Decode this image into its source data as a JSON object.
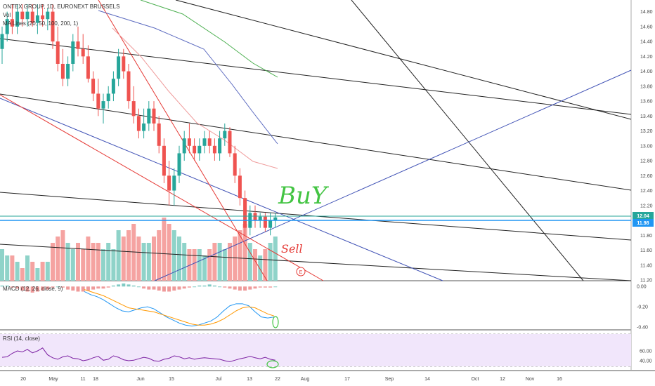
{
  "header": {
    "symbol_line": "ONTEX GROUP, 1D, EURONEXT BRUSSELS",
    "volume_label": "Vol",
    "ma_label": "MA Lines (20, 50, 100, 200, 1)",
    "macd_label": "MACD (12, 26, close, 9)",
    "rsi_label": "RSI (14, close)"
  },
  "annotations": {
    "buy_text": "BuY",
    "sell_text": "Sell",
    "event_marker": "E"
  },
  "price_tags": [
    {
      "value": "12.04",
      "color": "#26a69a"
    },
    {
      "value": "11.98",
      "color": "#2196f3"
    }
  ],
  "colors": {
    "up": "#26a69a",
    "down": "#ef5350",
    "rsi_band": "#f1e6fb",
    "accent": "#2196f3"
  },
  "chart_data": [
    {
      "type": "candlestick",
      "title": "ONTEX GROUP, 1D, EURONEXT BRUSSELS",
      "ylim": [
        11.2,
        14.9
      ],
      "yticks": [
        "14.80",
        "14.60",
        "14.40",
        "14.20",
        "14.00",
        "13.80",
        "13.60",
        "13.40",
        "13.20",
        "13.00",
        "12.80",
        "12.60",
        "12.40",
        "12.20",
        "12.00",
        "11.80",
        "11.60",
        "11.40",
        "11.20"
      ],
      "xticks": [
        "20",
        "May",
        "11",
        "18",
        "Jun",
        "15",
        "Jul",
        "13",
        "22",
        "Aug",
        "17",
        "Sep",
        "14",
        "Oct",
        "12",
        "Nov",
        "16"
      ],
      "horizontal_lines": [
        12.04,
        11.98
      ],
      "candles": [
        [
          14.3,
          14.6,
          14.1,
          14.5
        ],
        [
          14.5,
          14.8,
          14.4,
          14.7
        ],
        [
          14.7,
          14.9,
          14.5,
          14.6
        ],
        [
          14.6,
          14.9,
          14.5,
          14.8
        ],
        [
          14.8,
          14.9,
          14.6,
          14.7
        ],
        [
          14.7,
          14.9,
          14.6,
          14.8
        ],
        [
          14.8,
          14.9,
          14.6,
          14.65
        ],
        [
          14.65,
          14.9,
          14.5,
          14.75
        ],
        [
          14.75,
          14.9,
          14.6,
          14.7
        ],
        [
          14.7,
          14.85,
          14.55,
          14.8
        ],
        [
          14.8,
          14.9,
          14.3,
          14.4
        ],
        [
          14.4,
          14.6,
          14.0,
          14.1
        ],
        [
          14.1,
          14.3,
          13.8,
          13.9
        ],
        [
          13.9,
          14.2,
          13.8,
          14.1
        ],
        [
          14.1,
          14.5,
          14.0,
          14.4
        ],
        [
          14.4,
          14.6,
          14.2,
          14.3
        ],
        [
          14.3,
          14.5,
          14.1,
          14.2
        ],
        [
          14.2,
          14.35,
          13.85,
          13.9
        ],
        [
          13.9,
          14.0,
          13.6,
          13.7
        ],
        [
          13.7,
          13.9,
          13.4,
          13.5
        ],
        [
          13.5,
          13.7,
          13.3,
          13.6
        ],
        [
          13.6,
          13.8,
          13.5,
          13.7
        ],
        [
          13.7,
          14.0,
          13.6,
          13.9
        ],
        [
          13.9,
          14.3,
          13.8,
          14.2
        ],
        [
          14.2,
          14.3,
          13.9,
          14.0
        ],
        [
          14.0,
          14.1,
          13.5,
          13.6
        ],
        [
          13.6,
          13.8,
          13.3,
          13.4
        ],
        [
          13.4,
          13.5,
          13.1,
          13.2
        ],
        [
          13.2,
          13.5,
          13.1,
          13.3
        ],
        [
          13.3,
          13.6,
          13.2,
          13.5
        ],
        [
          13.5,
          13.6,
          13.2,
          13.3
        ],
        [
          13.3,
          13.4,
          12.9,
          13.0
        ],
        [
          13.0,
          13.1,
          12.5,
          12.6
        ],
        [
          12.6,
          12.8,
          12.2,
          12.4
        ],
        [
          12.4,
          12.7,
          12.2,
          12.6
        ],
        [
          12.6,
          13.0,
          12.5,
          12.9
        ],
        [
          12.9,
          13.2,
          12.8,
          13.1
        ],
        [
          13.1,
          13.3,
          12.9,
          13.0
        ],
        [
          13.0,
          13.1,
          12.8,
          12.9
        ],
        [
          12.9,
          13.1,
          12.8,
          13.0
        ],
        [
          13.0,
          13.2,
          12.9,
          13.1
        ],
        [
          13.1,
          13.2,
          12.9,
          13.0
        ],
        [
          13.0,
          13.1,
          12.8,
          12.9
        ],
        [
          12.9,
          13.2,
          12.8,
          13.1
        ],
        [
          13.1,
          13.3,
          13.0,
          13.2
        ],
        [
          13.2,
          13.25,
          12.85,
          12.9
        ],
        [
          12.9,
          13.0,
          12.5,
          12.6
        ],
        [
          12.6,
          12.7,
          12.2,
          12.3
        ],
        [
          12.3,
          12.4,
          11.8,
          11.9
        ],
        [
          11.9,
          12.2,
          11.8,
          12.1
        ],
        [
          12.1,
          12.2,
          11.9,
          12.0
        ],
        [
          12.0,
          12.1,
          11.9,
          12.05
        ],
        [
          12.05,
          12.1,
          11.85,
          11.9
        ],
        [
          11.9,
          12.1,
          11.8,
          12.0
        ],
        [
          12.0,
          12.1,
          11.9,
          12.04
        ]
      ]
    },
    {
      "type": "bar",
      "title": "Vol",
      "values": [
        5,
        4,
        4,
        3,
        2,
        4,
        3,
        2,
        3,
        3,
        6,
        7,
        8,
        6,
        5,
        6,
        5,
        7,
        6,
        6,
        5,
        6,
        5,
        8,
        7,
        8,
        9,
        7,
        6,
        6,
        7,
        8,
        10,
        9,
        8,
        7,
        6,
        5,
        5,
        5,
        4,
        5,
        6,
        6,
        5,
        6,
        7,
        8,
        9,
        6,
        5,
        4,
        5,
        6,
        7
      ]
    },
    {
      "type": "line",
      "title": "MACD (12, 26, close, 9)",
      "ylim": [
        -0.42,
        0.05
      ],
      "yticks": [
        "0.00",
        "-0.20",
        "-0.40"
      ],
      "series": [
        {
          "values": [
            -0.05,
            -0.08,
            -0.1,
            -0.13,
            -0.17,
            -0.21,
            -0.24,
            -0.25,
            -0.23,
            -0.21,
            -0.2,
            -0.22,
            -0.26,
            -0.3,
            -0.33,
            -0.36,
            -0.38,
            -0.39,
            -0.38,
            -0.36,
            -0.34,
            -0.3,
            -0.24,
            -0.19,
            -0.17,
            -0.17,
            -0.19,
            -0.25,
            -0.3,
            -0.31,
            -0.3
          ],
          "color": "#2196f3"
        },
        {
          "values": [
            -0.03,
            -0.05,
            -0.07,
            -0.09,
            -0.12,
            -0.15,
            -0.18,
            -0.21,
            -0.22,
            -0.23,
            -0.24,
            -0.25,
            -0.27,
            -0.29,
            -0.31,
            -0.33,
            -0.35,
            -0.37,
            -0.38,
            -0.38,
            -0.37,
            -0.35,
            -0.32,
            -0.28,
            -0.24,
            -0.21,
            -0.2,
            -0.21,
            -0.24,
            -0.27,
            -0.29
          ],
          "color": "#ff9800"
        }
      ],
      "histogram": [
        0.01,
        0.01,
        -0.01,
        -0.02,
        -0.04,
        -0.05,
        -0.06,
        -0.05,
        -0.04,
        -0.03,
        -0.01,
        0.0,
        -0.01,
        -0.03,
        -0.04,
        -0.05,
        -0.05,
        -0.04,
        -0.03,
        -0.02,
        -0.02,
        -0.01,
        0.01,
        0.02,
        0.03,
        0.02,
        0.01,
        0.0,
        -0.02,
        -0.03,
        -0.03,
        -0.04,
        -0.05,
        -0.05,
        -0.04,
        -0.03,
        -0.02,
        -0.01,
        0.0,
        0.01,
        0.01,
        0.02,
        0.01,
        0.0,
        -0.01,
        -0.02,
        -0.03,
        -0.04,
        -0.04,
        -0.03,
        -0.02,
        -0.01,
        -0.01,
        -0.01,
        0.0
      ]
    },
    {
      "type": "line",
      "title": "RSI (14, close)",
      "ylim": [
        30,
        70
      ],
      "yticks": [
        "60.00",
        "40.00"
      ],
      "band": [
        30,
        70
      ],
      "values": [
        47,
        48,
        55,
        60,
        58,
        63,
        56,
        60,
        66,
        52,
        46,
        43,
        48,
        50,
        45,
        44,
        40,
        42,
        46,
        49,
        41,
        43,
        50,
        47,
        42,
        40,
        41,
        44,
        47,
        45,
        40,
        39,
        43,
        45,
        50,
        48,
        44,
        46,
        43,
        45,
        46,
        45,
        44,
        43,
        40,
        38,
        41,
        44,
        46,
        49,
        46,
        44,
        47,
        43,
        41
      ]
    }
  ]
}
